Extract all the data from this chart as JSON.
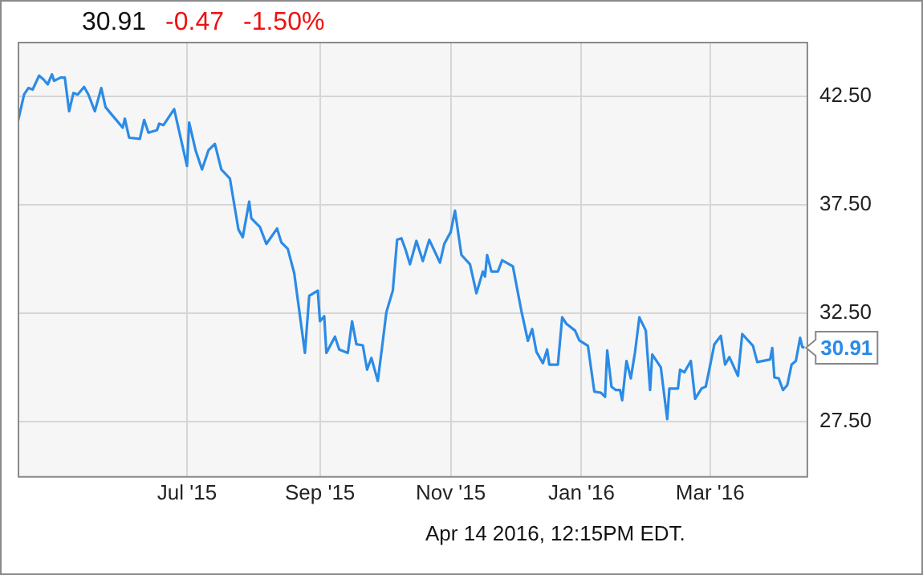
{
  "chart_data": {
    "type": "line",
    "title": "30.91",
    "annotations": [
      "-0.47",
      "-1.50%",
      "Apr 14 2016, 12:15PM EDT.",
      {
        "text": "30.91",
        "x": "2016-04-14",
        "y": 30.91
      }
    ],
    "xlim": [
      "2015-04-13",
      "2016-04-15"
    ],
    "xticks": [
      {
        "value": "2015-07-01",
        "label": "Jul '15"
      },
      {
        "value": "2015-09-01",
        "label": "Sep '15"
      },
      {
        "value": "2015-11-01",
        "label": "Nov '15"
      },
      {
        "value": "2016-01-01",
        "label": "Jan '16"
      },
      {
        "value": "2016-03-01",
        "label": "Mar '16"
      }
    ],
    "ylim": [
      25,
      45
    ],
    "yticks": [
      {
        "value": 27.5,
        "label": "27.50"
      },
      {
        "value": 32.5,
        "label": "32.50"
      },
      {
        "value": 37.5,
        "label": "37.50"
      },
      {
        "value": 42.5,
        "label": "42.50"
      }
    ],
    "grid": true,
    "legend": false,
    "marker": "none",
    "line_style": "solid",
    "series": [
      {
        "color": "#2b8be6",
        "x": [
          "2015-04-13",
          "2015-04-16",
          "2015-04-18",
          "2015-04-20",
          "2015-04-23",
          "2015-04-25",
          "2015-04-27",
          "2015-04-29",
          "2015-04-30",
          "2015-05-03",
          "2015-05-05",
          "2015-05-07",
          "2015-05-09",
          "2015-05-11",
          "2015-05-14",
          "2015-05-16",
          "2015-05-19",
          "2015-05-22",
          "2015-05-24",
          "2015-05-27",
          "2015-05-29",
          "2015-06-01",
          "2015-06-02",
          "2015-06-04",
          "2015-06-09",
          "2015-06-11",
          "2015-06-13",
          "2015-06-17",
          "2015-06-18",
          "2015-06-20",
          "2015-06-25",
          "2015-07-01",
          "2015-07-02",
          "2015-07-05",
          "2015-07-08",
          "2015-07-11",
          "2015-07-14",
          "2015-07-17",
          "2015-07-21",
          "2015-07-25",
          "2015-07-27",
          "2015-07-30",
          "2015-07-31",
          "2015-08-04",
          "2015-08-07",
          "2015-08-12",
          "2015-08-14",
          "2015-08-17",
          "2015-08-20",
          "2015-08-25",
          "2015-08-27",
          "2015-08-31",
          "2015-09-01",
          "2015-09-03",
          "2015-09-04",
          "2015-09-08",
          "2015-09-10",
          "2015-09-14",
          "2015-09-16",
          "2015-09-18",
          "2015-09-21",
          "2015-09-23",
          "2015-09-25",
          "2015-09-28",
          "2015-09-30",
          "2015-10-02",
          "2015-10-05",
          "2015-10-07",
          "2015-10-09",
          "2015-10-11",
          "2015-10-13",
          "2015-10-16",
          "2015-10-19",
          "2015-10-22",
          "2015-10-27",
          "2015-10-29",
          "2015-11-01",
          "2015-11-03",
          "2015-11-06",
          "2015-11-10",
          "2015-11-13",
          "2015-11-16",
          "2015-11-17",
          "2015-11-18",
          "2015-11-20",
          "2015-11-23",
          "2015-11-25",
          "2015-11-30",
          "2015-12-04",
          "2015-12-07",
          "2015-12-09",
          "2015-12-11",
          "2015-12-14",
          "2015-12-16",
          "2015-12-17",
          "2015-12-21",
          "2015-12-23",
          "2015-12-25",
          "2015-12-29",
          "2015-12-31",
          "2016-01-04",
          "2016-01-07",
          "2016-01-10",
          "2016-01-12",
          "2016-01-13",
          "2016-01-15",
          "2016-01-17",
          "2016-01-19",
          "2016-01-20",
          "2016-01-22",
          "2016-01-24",
          "2016-01-26",
          "2016-01-28",
          "2016-01-31",
          "2016-02-02",
          "2016-02-03",
          "2016-02-07",
          "2016-02-10",
          "2016-02-11",
          "2016-02-15",
          "2016-02-16",
          "2016-02-18",
          "2016-02-21",
          "2016-02-23",
          "2016-02-26",
          "2016-02-28",
          "2016-03-03",
          "2016-03-06",
          "2016-03-08",
          "2016-03-10",
          "2016-03-14",
          "2016-03-16",
          "2016-03-21",
          "2016-03-23",
          "2016-03-29",
          "2016-03-30",
          "2016-03-31",
          "2016-04-02",
          "2016-04-04",
          "2016-04-06",
          "2016-04-08",
          "2016-04-10",
          "2016-04-12",
          "2016-04-13",
          "2016-04-14"
        ],
        "values": [
          41.28,
          42.57,
          42.87,
          42.8,
          43.44,
          43.27,
          43.04,
          43.5,
          43.2,
          43.35,
          43.35,
          41.8,
          42.64,
          42.57,
          42.92,
          42.57,
          41.8,
          42.87,
          41.99,
          41.63,
          41.4,
          41.04,
          41.46,
          40.58,
          40.53,
          41.4,
          40.81,
          40.93,
          41.23,
          41.16,
          41.9,
          39.28,
          41.28,
          40.0,
          39.12,
          40.0,
          40.3,
          39.12,
          38.7,
          36.35,
          36.0,
          37.64,
          36.87,
          36.47,
          35.69,
          36.4,
          35.76,
          35.46,
          34.35,
          30.67,
          33.3,
          33.54,
          32.13,
          32.36,
          30.67,
          31.42,
          30.83,
          30.67,
          32.13,
          31.07,
          31.02,
          29.9,
          30.44,
          29.38,
          30.95,
          32.55,
          33.54,
          35.88,
          35.95,
          35.41,
          34.75,
          35.83,
          34.9,
          35.88,
          34.83,
          35.69,
          36.24,
          37.22,
          35.18,
          34.75,
          33.42,
          34.42,
          34.19,
          35.18,
          34.42,
          34.42,
          34.94,
          34.66,
          32.59,
          31.23,
          31.77,
          30.72,
          30.2,
          30.83,
          30.13,
          30.13,
          32.31,
          32.01,
          31.7,
          31.25,
          31.0,
          28.89,
          28.84,
          28.65,
          30.79,
          29.12,
          28.96,
          28.96,
          28.49,
          30.3,
          29.5,
          30.72,
          32.31,
          31.7,
          28.96,
          30.6,
          30.01,
          27.62,
          29.03,
          29.03,
          29.9,
          29.78,
          30.3,
          28.56,
          29.03,
          29.12,
          31.07,
          31.46,
          30.13,
          30.48,
          29.61,
          31.54,
          31.0,
          30.25,
          30.37,
          30.9,
          29.54,
          29.5,
          28.96,
          29.19,
          30.13,
          30.3,
          31.37,
          30.95,
          30.91
        ]
      }
    ]
  }
}
